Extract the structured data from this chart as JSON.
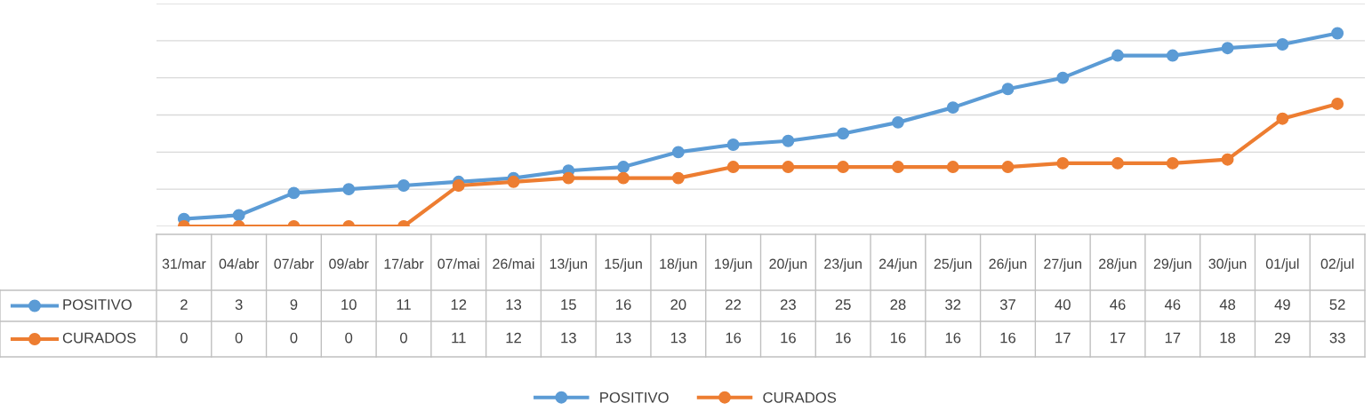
{
  "chart_data": {
    "type": "line",
    "categories": [
      "31/mar",
      "04/abr",
      "07/abr",
      "09/abr",
      "17/abr",
      "07/mai",
      "26/mai",
      "13/jun",
      "15/jun",
      "18/jun",
      "19/jun",
      "20/jun",
      "23/jun",
      "24/jun",
      "25/jun",
      "26/jun",
      "27/jun",
      "28/jun",
      "29/jun",
      "30/jun",
      "01/jul",
      "02/jul"
    ],
    "series": [
      {
        "name": "POSITIVO",
        "color": "#5b9bd5",
        "values": [
          2,
          3,
          9,
          10,
          11,
          12,
          13,
          15,
          16,
          20,
          22,
          23,
          25,
          28,
          32,
          37,
          40,
          46,
          46,
          48,
          49,
          52
        ]
      },
      {
        "name": "CURADOS",
        "color": "#ed7d31",
        "values": [
          0,
          0,
          0,
          0,
          0,
          11,
          12,
          13,
          13,
          13,
          16,
          16,
          16,
          16,
          16,
          16,
          17,
          17,
          17,
          18,
          29,
          33
        ]
      }
    ],
    "ylim": [
      0,
      60
    ],
    "yticks": [
      {
        "value": 0,
        "label": null
      },
      {
        "value": 10,
        "label": null
      },
      {
        "value": 20,
        "label": null
      },
      {
        "value": 30,
        "label": null
      },
      {
        "value": 40,
        "label": null
      },
      {
        "value": 50,
        "label": null
      },
      {
        "value": 60,
        "label": null
      }
    ],
    "tick_labels": "x",
    "grid": "y",
    "marker": "circle",
    "line_style": "solid",
    "data_labels": true,
    "legend": "bottom"
  }
}
